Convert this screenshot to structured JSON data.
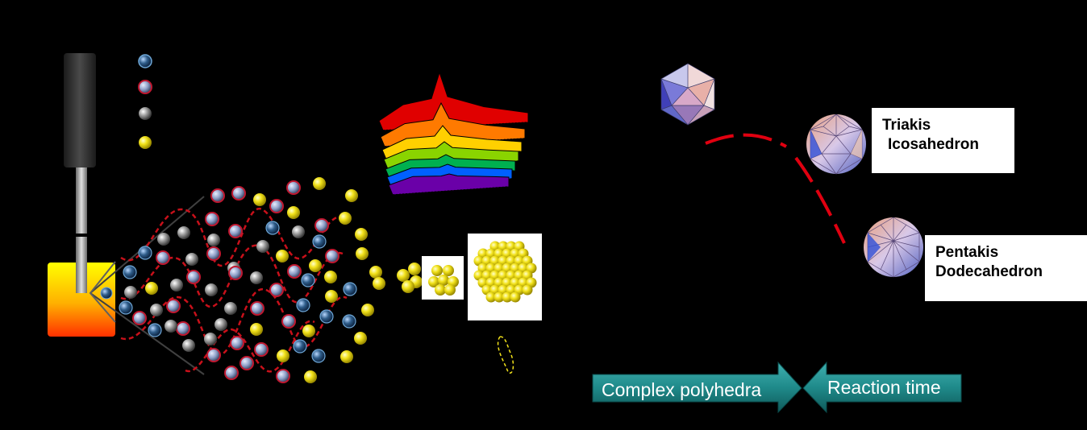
{
  "labels": {
    "triakis_line1": "Triakis",
    "triakis_line2": "Icosahedron",
    "pentakis_line1": "Pentakis",
    "pentakis_line2": "Dodecahedron"
  },
  "arrows": {
    "left": "Complex polyhedra",
    "right": "Reaction time"
  },
  "colors": {
    "background": "#000000",
    "gold": "#f2e21a",
    "silver": "#9a9a9a",
    "blue_sphere": "#2f5d8a",
    "pink_sphere": "#c05a78",
    "wave": "#c8101a",
    "arrow_fill": "#1f8a8a",
    "arrow_text": "#ffffff",
    "spectrum": [
      "#e00000",
      "#ff7a00",
      "#ffd000",
      "#8ad400",
      "#00b050",
      "#0060ff",
      "#6a00a8"
    ]
  },
  "icons": {
    "legend": [
      "blue-sphere-icon",
      "pink-sphere-icon",
      "silver-sphere-icon",
      "gold-sphere-icon"
    ],
    "apparatus": "ultrasonic-probe-icon",
    "vessel": "heated-beaker-icon",
    "spectrum": "absorption-spectrum-icon",
    "polyhedra": [
      "icosahedron-icon",
      "triakis-icosahedron-icon",
      "pentakis-dodecahedron-icon"
    ]
  }
}
